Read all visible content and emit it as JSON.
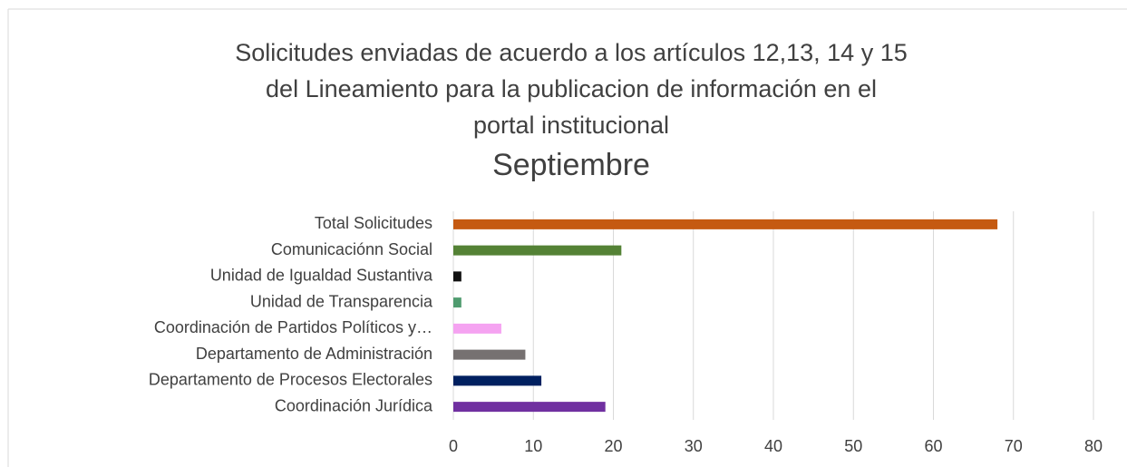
{
  "chart_data": {
    "type": "barh",
    "title": [
      "Solicitudes enviadas de acuerdo a los artículos 12,13, 14 y 15",
      "del Lineamiento para la publicacion de información en el",
      "portal institucional"
    ],
    "subtitle": "Septiembre",
    "categories": [
      "Coordinación Jurídica",
      "Departamento de Procesos Electorales",
      "Departamento de Administración",
      "Coordinación de Partidos Políticos y…",
      "Unidad de Transparencia",
      "Unidad de Igualdad Sustantiva",
      "Comunicaciónn Social",
      "Total Solicitudes"
    ],
    "values": [
      19,
      11,
      9,
      6,
      1,
      1,
      21,
      68
    ],
    "colors": [
      "#7030a0",
      "#002060",
      "#767171",
      "#f5a3f1",
      "#4f9b6f",
      "#111111",
      "#548235",
      "#c55a11"
    ],
    "xlim": [
      0,
      80
    ],
    "xticks": [
      0,
      10,
      20,
      30,
      40,
      50,
      60,
      70,
      80
    ],
    "grid": true
  }
}
